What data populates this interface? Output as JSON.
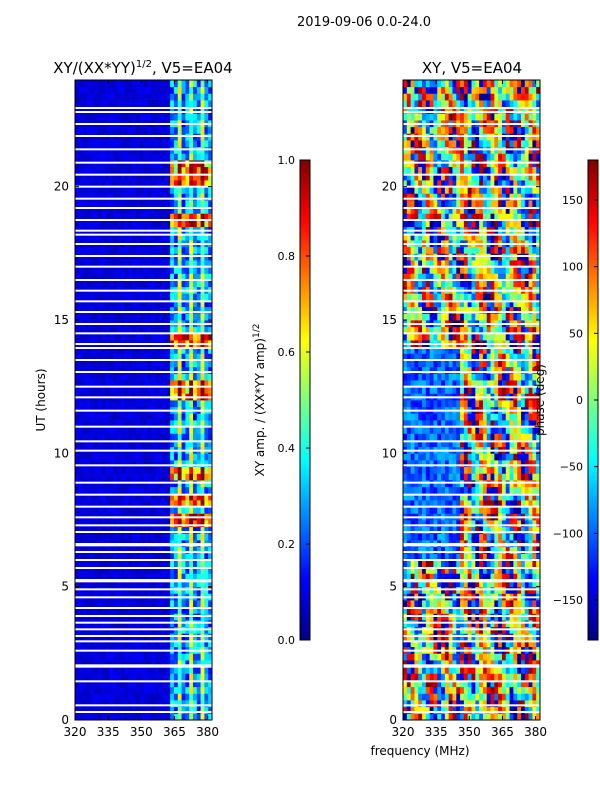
{
  "figure": {
    "suptitle": "2019-09-06 0.0-24.0",
    "shared_xlabel": "frequency (MHz)"
  },
  "colors": {
    "frame": "#000000",
    "gap": "#ffffff",
    "jet_stops": [
      "#00007f",
      "#0000ff",
      "#007fff",
      "#00ffff",
      "#7fff7f",
      "#ffff00",
      "#ff7f00",
      "#ff0000",
      "#7f0000"
    ]
  },
  "chart_data": [
    {
      "type": "heatmap",
      "name": "amplitude",
      "title": "XY/(XX*YY)",
      "title_exponent": "1/2",
      "title_suffix": ", V5=EA04",
      "xlabel": "",
      "ylabel": "UT (hours)",
      "xlim": [
        320,
        382
      ],
      "ylim": [
        0,
        24
      ],
      "xticks": [
        320,
        335,
        350,
        365,
        380
      ],
      "yticks": [
        0,
        5,
        10,
        15,
        20
      ],
      "signal_band_mhz": [
        362,
        382
      ],
      "bright_hours": [
        7.5,
        8.3,
        9.3,
        12.4,
        14.3,
        18.8,
        20.2,
        20.6
      ],
      "gap_hours": [
        0.3,
        0.55,
        1.45,
        2.0,
        2.05,
        2.6,
        2.95,
        3.15,
        3.4,
        3.65,
        3.9,
        4.2,
        4.6,
        4.9,
        5.2,
        5.25,
        5.7,
        6.0,
        6.3,
        6.55,
        6.6,
        7.05,
        7.3,
        7.6,
        8.0,
        8.45,
        8.9,
        9.55,
        10.1,
        10.45,
        11.0,
        11.6,
        12.1,
        12.5,
        13.05,
        13.5,
        13.95,
        14.1,
        14.5,
        14.85,
        15.3,
        15.7,
        16.1,
        16.5,
        17.0,
        17.4,
        17.85,
        18.2,
        18.35,
        18.75,
        19.2,
        19.55,
        20.0,
        20.45,
        20.9,
        21.4,
        21.9,
        22.35,
        22.8,
        22.95
      ],
      "colorbar": {
        "label": "XY amp. / (XX*YY amp)",
        "label_exponent": "1/2",
        "min": 0.0,
        "max": 1.0,
        "ticks": [
          "0.0",
          "0.2",
          "0.4",
          "0.6",
          "0.8",
          "1.0"
        ]
      }
    },
    {
      "type": "heatmap",
      "name": "phase",
      "title": "XY, V5=EA04",
      "xlabel": "frequency (MHz)",
      "ylabel": "",
      "xlim": [
        320,
        382
      ],
      "ylim": [
        0,
        24
      ],
      "xticks": [
        320,
        335,
        350,
        365,
        380
      ],
      "yticks": [
        0,
        5,
        10,
        15,
        20
      ],
      "gap_hours": [
        0.3,
        0.55,
        1.45,
        2.0,
        2.05,
        2.6,
        2.95,
        3.15,
        3.4,
        3.65,
        3.9,
        4.2,
        4.6,
        4.9,
        5.2,
        5.25,
        5.7,
        6.0,
        6.3,
        6.55,
        6.6,
        7.05,
        7.3,
        7.6,
        8.0,
        8.45,
        8.9,
        9.55,
        10.1,
        10.45,
        11.0,
        11.6,
        12.1,
        12.5,
        13.05,
        13.5,
        13.95,
        14.1,
        14.5,
        14.85,
        15.3,
        15.7,
        16.1,
        16.5,
        17.0,
        17.4,
        17.85,
        18.2,
        18.35,
        18.75,
        19.2,
        19.55,
        20.0,
        20.45,
        20.9,
        21.4,
        21.9,
        22.35,
        22.8,
        22.95
      ],
      "colorbar": {
        "label": "phase (deg)",
        "min": -180,
        "max": 180,
        "ticks": [
          "−150",
          "−100",
          "−50",
          "0",
          "50",
          "100",
          "150"
        ],
        "tick_values": [
          -150,
          -100,
          -50,
          0,
          50,
          100,
          150
        ]
      }
    }
  ]
}
